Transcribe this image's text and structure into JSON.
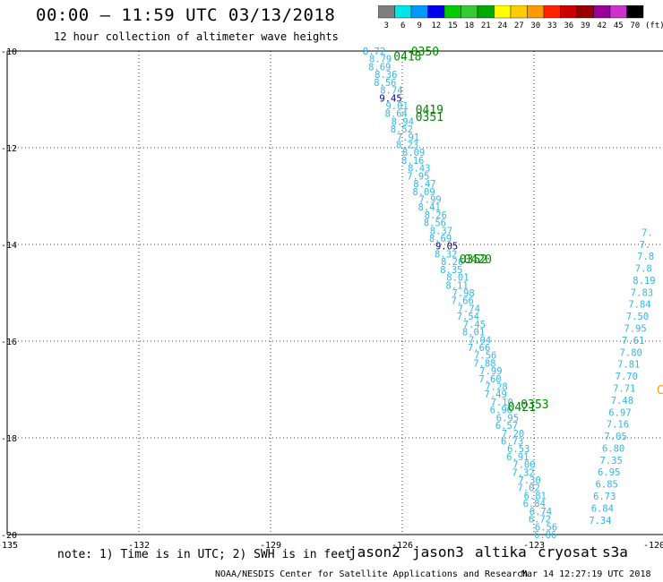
{
  "header": {
    "title": "00:00 – 11:59 UTC 03/13/2018",
    "subtitle": "12 hour collection of altimeter wave heights"
  },
  "colorbar": {
    "bins": [
      {
        "label": "3",
        "color": "#7f7f7f"
      },
      {
        "label": "6",
        "color": "#00e5e5"
      },
      {
        "label": "9",
        "color": "#0099ff"
      },
      {
        "label": "12",
        "color": "#0000ee"
      },
      {
        "label": "15",
        "color": "#00cc00"
      },
      {
        "label": "18",
        "color": "#33cc33"
      },
      {
        "label": "21",
        "color": "#00aa00"
      },
      {
        "label": "24",
        "color": "#ffff00"
      },
      {
        "label": "27",
        "color": "#ffcc00"
      },
      {
        "label": "30",
        "color": "#ff9900"
      },
      {
        "label": "33",
        "color": "#ff2200"
      },
      {
        "label": "36",
        "color": "#cc0000"
      },
      {
        "label": "39",
        "color": "#990000"
      },
      {
        "label": "42",
        "color": "#990099"
      },
      {
        "label": "45",
        "color": "#cc33cc"
      },
      {
        "label": "70",
        "color": "#000000"
      }
    ],
    "unit": "(ft)"
  },
  "map": {
    "lon_labels": [
      "-135",
      "-132",
      "-129",
      "-126",
      "-123",
      "-120"
    ],
    "lat_labels": [
      "-10",
      "-12",
      "-14",
      "-16",
      "-18",
      "-20"
    ],
    "lon_range": [
      -135,
      -120
    ],
    "lat_range": [
      -20,
      -10
    ],
    "grid": "dotted",
    "track_color": "#33b5e5",
    "track_a": {
      "start": [
        -126.9,
        -10.0
      ],
      "end": [
        -123.0,
        -20.0
      ],
      "values": [
        "8.72",
        "8.79",
        "8.69",
        "8.36",
        "8.56",
        "8.74",
        "9.45",
        "9.01",
        "8.64",
        "8.94",
        "8.52",
        "7.91",
        "8.23",
        "8.09",
        "8.16",
        "8.43",
        "7.95",
        "8.47",
        "8.09",
        "7.99",
        "8.41",
        "8.26",
        "8.56",
        "8.37",
        "8.69",
        "9.05",
        "8.32",
        "8.26",
        "8.35",
        "8.01",
        "8.11",
        "7.98",
        "7.66",
        "7.74",
        "7.54",
        "7.45",
        "8.01",
        "7.94",
        "7.66",
        "7.56",
        "7.88",
        "7.99",
        "7.60",
        "7.28",
        "7.49",
        "7.10",
        "6.96",
        "6.95",
        "6.57",
        "7.20",
        "6.73",
        "6.53",
        "6.91",
        "7.00",
        "7.32",
        "7.30",
        "7.02",
        "6.81",
        "6.84",
        "6.74",
        "6.72",
        "6.56",
        "6.86"
      ],
      "highlight": {
        "value": "9.05",
        "color": "#000099"
      },
      "highlight2": {
        "value": "9.45",
        "color": "#000099"
      }
    },
    "track_b": {
      "values": [
        "7.34",
        "6.84",
        "6.73",
        "6.85",
        "6.95",
        "7.35",
        "6.80",
        "7.05",
        "7.16",
        "6.97",
        "7.48",
        "7.71",
        "7.70",
        "7.81",
        "7.80",
        "7.61",
        "7.95",
        "7.50",
        "7.84",
        "7.83",
        "8.19",
        "7.8",
        "7.8",
        "7.",
        "7."
      ]
    },
    "time_labels": [
      {
        "text": "0350",
        "lon": -125.8,
        "lat": -10.0
      },
      {
        "text": "0418",
        "lon": -126.2,
        "lat": -10.1
      },
      {
        "text": "0419",
        "lon": -125.7,
        "lat": -11.2
      },
      {
        "text": "0351",
        "lon": -125.7,
        "lat": -11.35
      },
      {
        "text": "0352",
        "lon": -124.7,
        "lat": -14.3
      },
      {
        "text": "0420",
        "lon": -124.6,
        "lat": -14.3
      },
      {
        "text": "0353",
        "lon": -123.3,
        "lat": -17.3
      },
      {
        "text": "0421",
        "lon": -123.6,
        "lat": -17.35
      }
    ],
    "time_label_color": "#008800",
    "edge_label": {
      "text": "C",
      "color": "#ff9900"
    }
  },
  "note": "note: 1) Time is in UTC; 2) SWH is in feet",
  "satellites": [
    {
      "name": "jason2",
      "color": "#0000cc"
    },
    {
      "name": "jason3",
      "color": "#00aa00"
    },
    {
      "name": "altika",
      "color": "#ff9900"
    },
    {
      "name": "cryosat",
      "color": "#ee0000"
    },
    {
      "name": "s3a",
      "color": "#990000"
    }
  ],
  "footer": {
    "credit": "NOAA/NESDIS Center for Satellite Applications and Research",
    "timestamp": "Mar 14 12:27:19 UTC 2018"
  }
}
